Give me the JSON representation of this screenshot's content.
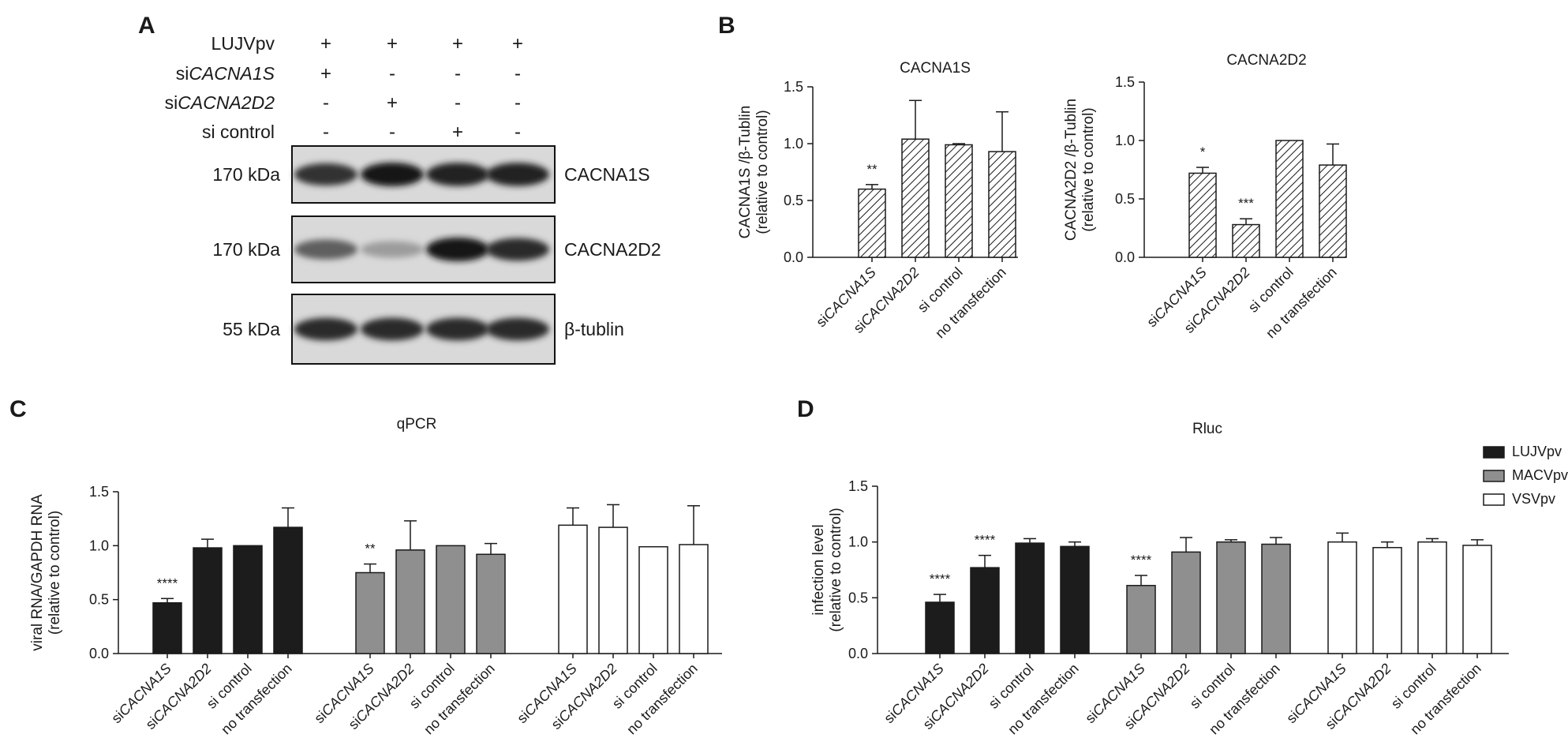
{
  "panels": {
    "a": "A",
    "b": "B",
    "c": "C",
    "d": "D"
  },
  "western_blot": {
    "rows": [
      {
        "label": "LUJVpv",
        "label_italic": "",
        "marks": [
          "+",
          "+",
          "+",
          "+"
        ]
      },
      {
        "label": "si",
        "label_italic": "CACNA1S",
        "marks": [
          "+",
          "-",
          "-",
          "-"
        ]
      },
      {
        "label": "si",
        "label_italic": "CACNA2D2",
        "marks": [
          "-",
          "+",
          "-",
          "-"
        ]
      },
      {
        "label": "si control",
        "label_italic": "",
        "marks": [
          "-",
          "-",
          "+",
          "-"
        ]
      }
    ],
    "blots": [
      {
        "kda": "170 kDa",
        "protein": "CACNA1S",
        "band_intensity": [
          0.85,
          1.0,
          0.95,
          0.95
        ]
      },
      {
        "kda": "170 kDa",
        "protein": "CACNA2D2",
        "band_intensity": [
          0.6,
          0.25,
          1.0,
          0.9
        ]
      },
      {
        "kda": "55 kDa",
        "protein": "β-tublin",
        "band_intensity": [
          0.9,
          0.9,
          0.9,
          0.9
        ]
      }
    ]
  },
  "colors": {
    "lujv": "#1c1c1c",
    "macv": "#8f8f8f",
    "vsv": "#ffffff",
    "axis": "#1a1a1a"
  },
  "chart_data": [
    {
      "id": "b1",
      "type": "bar",
      "pattern": "diagonal-hatch",
      "title": "CACNA1S",
      "ylabel": [
        "CACNA1S /β-Tublin",
        "(relative to control)"
      ],
      "ylim": [
        0,
        1.5
      ],
      "yticks": [
        "0.0",
        "0.5",
        "1.0",
        "1.5"
      ],
      "categories": [
        {
          "prefix": "si",
          "italic": "CACNA1S"
        },
        {
          "prefix": "si",
          "italic": "CACNA2D2"
        },
        {
          "prefix": "si control",
          "italic": ""
        },
        {
          "prefix": "no transfection",
          "italic": ""
        }
      ],
      "values": [
        0.6,
        1.04,
        0.99,
        0.93
      ],
      "errors": [
        0.04,
        0.34,
        0.01,
        0.35
      ],
      "significance": [
        "**",
        "",
        "",
        ""
      ]
    },
    {
      "id": "b2",
      "type": "bar",
      "pattern": "diagonal-hatch",
      "title": "CACNA2D2",
      "ylabel": [
        "CACNA2D2 /β-Tublin",
        "(relative to control)"
      ],
      "ylim": [
        0,
        1.5
      ],
      "yticks": [
        "0.0",
        "0.5",
        "1.0",
        "1.5"
      ],
      "categories": [
        {
          "prefix": "si",
          "italic": "CACNA1S"
        },
        {
          "prefix": "si",
          "italic": "CACNA2D2"
        },
        {
          "prefix": "si control",
          "italic": ""
        },
        {
          "prefix": "no transfection",
          "italic": ""
        }
      ],
      "values": [
        0.72,
        0.28,
        1.0,
        0.79
      ],
      "errors": [
        0.05,
        0.05,
        0.0,
        0.18
      ],
      "significance": [
        "*",
        "***",
        "",
        ""
      ]
    },
    {
      "id": "c",
      "type": "bar",
      "title": "qPCR",
      "ylabel": [
        "viral RNA/GAPDH RNA",
        "(relative to control)"
      ],
      "ylim": [
        0,
        1.5
      ],
      "yticks": [
        "0.0",
        "0.5",
        "1.0",
        "1.5"
      ],
      "categories": [
        {
          "prefix": "si",
          "italic": "CACNA1S"
        },
        {
          "prefix": "si",
          "italic": "CACNA2D2"
        },
        {
          "prefix": "si control",
          "italic": ""
        },
        {
          "prefix": "no transfection",
          "italic": ""
        }
      ],
      "series": [
        {
          "values": [
            0.47,
            0.98,
            1.0,
            1.17
          ],
          "errors": [
            0.04,
            0.08,
            0.0,
            0.18
          ],
          "significance": [
            "****",
            "",
            "",
            ""
          ]
        },
        {
          "values": [
            0.75,
            0.96,
            1.0,
            0.92
          ],
          "errors": [
            0.08,
            0.27,
            0.0,
            0.1
          ],
          "significance": [
            "**",
            "",
            "",
            ""
          ]
        },
        {
          "values": [
            1.19,
            1.17,
            0.99,
            1.01
          ],
          "errors": [
            0.16,
            0.21,
            0.0,
            0.36
          ],
          "significance": [
            "",
            "",
            "",
            ""
          ]
        }
      ]
    },
    {
      "id": "d",
      "type": "bar",
      "title": "Rluc",
      "ylabel": [
        "infection level",
        "(relative to control)"
      ],
      "ylim": [
        0,
        1.5
      ],
      "yticks": [
        "0.0",
        "0.5",
        "1.0",
        "1.5"
      ],
      "legend": {
        "placement": "top-right"
      },
      "categories": [
        {
          "prefix": "si",
          "italic": "CACNA1S"
        },
        {
          "prefix": "si",
          "italic": "CACNA2D2"
        },
        {
          "prefix": "si control",
          "italic": ""
        },
        {
          "prefix": "no transfection",
          "italic": ""
        }
      ],
      "series": [
        {
          "name": "LUJVpv",
          "values": [
            0.46,
            0.77,
            0.99,
            0.96
          ],
          "errors": [
            0.07,
            0.11,
            0.04,
            0.04
          ],
          "significance": [
            "****",
            "****",
            "",
            ""
          ]
        },
        {
          "name": "MACVpv",
          "values": [
            0.61,
            0.91,
            1.0,
            0.98
          ],
          "errors": [
            0.09,
            0.13,
            0.02,
            0.06
          ],
          "significance": [
            "****",
            "",
            "",
            ""
          ]
        },
        {
          "name": "VSVpv",
          "values": [
            1.0,
            0.95,
            1.0,
            0.97
          ],
          "errors": [
            0.08,
            0.05,
            0.03,
            0.05
          ],
          "significance": [
            "",
            "",
            "",
            ""
          ]
        }
      ]
    }
  ]
}
